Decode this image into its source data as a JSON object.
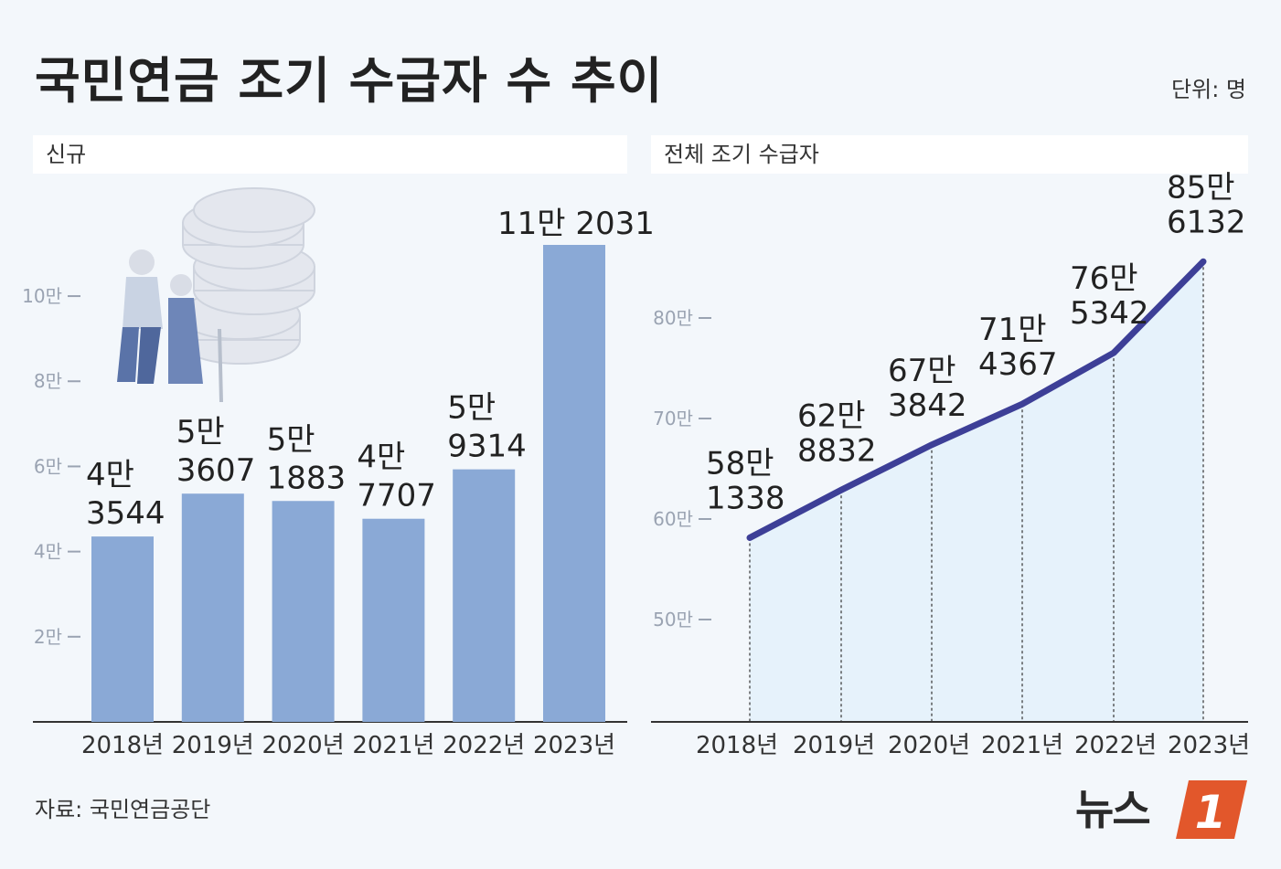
{
  "title": "국민연금 조기 수급자 수 추이",
  "unit": "단위: 명",
  "source": "자료: 국민연금공단",
  "logo": {
    "text": "뉴스",
    "badge": "1"
  },
  "colors": {
    "bar": "#8aa9d6",
    "line": "#3d3f97",
    "area": "#e6f2fb",
    "background": "#f3f7fb",
    "logo_badge": "#e2572b"
  },
  "illustrations": [
    "elderly-couple-coins-illustration",
    "money-bag-hand-won-illustration"
  ],
  "chart_data": [
    {
      "type": "bar",
      "panel_label": "신규",
      "categories": [
        "2018년",
        "2019년",
        "2020년",
        "2021년",
        "2022년",
        "2023년"
      ],
      "values": [
        43544,
        53607,
        51883,
        47707,
        59314,
        112031
      ],
      "value_labels": [
        [
          "4만",
          "3544"
        ],
        [
          "5만",
          "3607"
        ],
        [
          "5만",
          "1883"
        ],
        [
          "4만",
          "7707"
        ],
        [
          "5만",
          "9314"
        ],
        [
          "11만 2031"
        ]
      ],
      "yticks": [
        {
          "v": 20000,
          "label": "2만"
        },
        {
          "v": 40000,
          "label": "4만"
        },
        {
          "v": 60000,
          "label": "6만"
        },
        {
          "v": 80000,
          "label": "8만"
        },
        {
          "v": 100000,
          "label": "10만"
        }
      ],
      "ylim": [
        0,
        120000
      ]
    },
    {
      "type": "area",
      "panel_label": "전체 조기 수급자",
      "categories": [
        "2018년",
        "2019년",
        "2020년",
        "2021년",
        "2022년",
        "2023년"
      ],
      "values": [
        581338,
        628832,
        673842,
        714367,
        765342,
        856132
      ],
      "value_labels": [
        [
          "58만",
          "1338"
        ],
        [
          "62만",
          "8832"
        ],
        [
          "67만",
          "3842"
        ],
        [
          "71만",
          "4367"
        ],
        [
          "76만",
          "5342"
        ],
        [
          "85만",
          "6132"
        ]
      ],
      "yticks": [
        {
          "v": 500000,
          "label": "50만"
        },
        {
          "v": 600000,
          "label": "60만"
        },
        {
          "v": 700000,
          "label": "70만"
        },
        {
          "v": 800000,
          "label": "80만"
        }
      ],
      "ylim": [
        400000,
        900000
      ]
    }
  ]
}
